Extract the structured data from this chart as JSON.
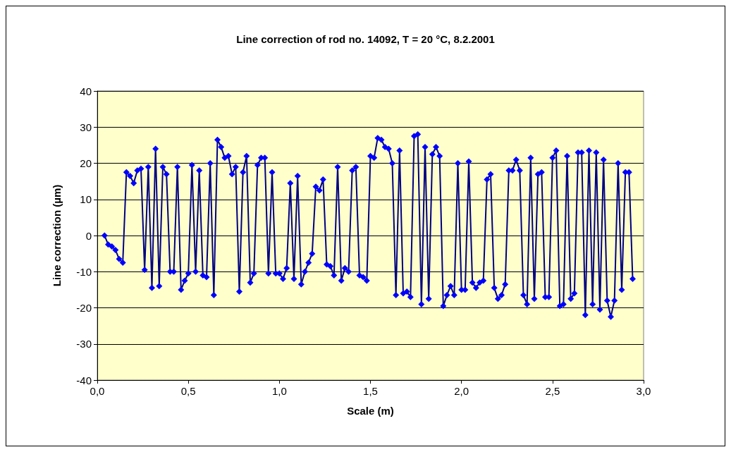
{
  "chart_data": {
    "type": "line",
    "title": "Line correction of rod no. 14092, T = 20 °C, 8.2.2001",
    "xlabel": "Scale (m)",
    "ylabel": "Line correction (µm)",
    "x": [
      0.04,
      0.06,
      0.08,
      0.1,
      0.12,
      0.14,
      0.16,
      0.18,
      0.2,
      0.22,
      0.24,
      0.26,
      0.28,
      0.3,
      0.32,
      0.34,
      0.36,
      0.38,
      0.4,
      0.42,
      0.44,
      0.46,
      0.48,
      0.5,
      0.52,
      0.54,
      0.56,
      0.58,
      0.6,
      0.62,
      0.64,
      0.66,
      0.68,
      0.7,
      0.72,
      0.74,
      0.76,
      0.78,
      0.8,
      0.82,
      0.84,
      0.86,
      0.88,
      0.9,
      0.92,
      0.94,
      0.96,
      0.98,
      1.0,
      1.02,
      1.04,
      1.06,
      1.08,
      1.1,
      1.12,
      1.14,
      1.16,
      1.18,
      1.2,
      1.22,
      1.24,
      1.26,
      1.28,
      1.3,
      1.32,
      1.34,
      1.36,
      1.38,
      1.4,
      1.42,
      1.44,
      1.46,
      1.48,
      1.5,
      1.52,
      1.54,
      1.56,
      1.58,
      1.6,
      1.62,
      1.64,
      1.66,
      1.68,
      1.7,
      1.72,
      1.74,
      1.76,
      1.78,
      1.8,
      1.82,
      1.84,
      1.86,
      1.88,
      1.9,
      1.92,
      1.94,
      1.96,
      1.98,
      2.0,
      2.02,
      2.04,
      2.06,
      2.08,
      2.1,
      2.12,
      2.14,
      2.16,
      2.18,
      2.2,
      2.22,
      2.24,
      2.26,
      2.28,
      2.3,
      2.32,
      2.34,
      2.36,
      2.38,
      2.4,
      2.42,
      2.44,
      2.46,
      2.48,
      2.5,
      2.52,
      2.54,
      2.56,
      2.58,
      2.6,
      2.62,
      2.64,
      2.66,
      2.68,
      2.7,
      2.72,
      2.74,
      2.76,
      2.78,
      2.8,
      2.82,
      2.84,
      2.86,
      2.88,
      2.9,
      2.92,
      2.94
    ],
    "series": [
      {
        "color": "#0000ff",
        "values": [
          0,
          -2.5,
          -3,
          -4,
          -6.5,
          -7.5,
          17.5,
          16.5,
          14.5,
          18,
          18.5,
          -9.5,
          19,
          -14.5,
          24,
          -14,
          19,
          17,
          -10,
          -10,
          19,
          -15,
          -12.5,
          -10.5,
          19.5,
          -10,
          18,
          -11,
          -11.5,
          20,
          -16.5,
          26.5,
          24.5,
          21.5,
          22,
          17,
          19,
          -15.5,
          17.5,
          22,
          -13,
          -10.5,
          19.5,
          21.5,
          21.5,
          -10.5,
          17.5,
          -10.5,
          -10.5,
          -12,
          -9,
          14.5,
          -12,
          16.5,
          -13.5,
          -10,
          -7.5,
          -5,
          13.5,
          12.5,
          15.5,
          -8,
          -8.5,
          -11,
          19,
          -12.5,
          -9,
          -10,
          18,
          19,
          -11,
          -11.5,
          -12.5,
          22,
          21.5,
          27,
          26.5,
          24.5,
          24,
          20,
          -16.5,
          23.5,
          -16,
          -15.5,
          -17,
          27.5,
          28,
          -19,
          24.5,
          -17.5,
          22.5,
          24.5,
          22,
          -19.5,
          -16.5,
          -14,
          -16.5,
          20,
          -15,
          -15,
          20.5,
          -13,
          -14.5,
          -13,
          -12.5,
          15.5,
          17,
          -14.5,
          -17.5,
          -16.5,
          -13.5,
          18,
          18,
          21,
          18,
          -16.5,
          -19,
          21.5,
          -17.5,
          17,
          17.5,
          -17,
          -17,
          21.5,
          23.5,
          -19.5,
          -19,
          22,
          -17.5,
          -16,
          23,
          23,
          -22,
          23.5,
          -19,
          23,
          -20.5,
          21,
          -18,
          -22.5,
          -18,
          20,
          -15,
          17.5,
          17.5,
          -12
        ]
      }
    ],
    "xlim": [
      0,
      3
    ],
    "xticks": [
      {
        "value": 0,
        "label": "0,0"
      },
      {
        "value": 0.5,
        "label": "0,5"
      },
      {
        "value": 1,
        "label": "1,0"
      },
      {
        "value": 1.5,
        "label": "1,5"
      },
      {
        "value": 2,
        "label": "2,0"
      },
      {
        "value": 2.5,
        "label": "2,5"
      },
      {
        "value": 3,
        "label": "3,0"
      }
    ],
    "ylim": [
      -40,
      40
    ],
    "yticks": [
      -40,
      -30,
      -20,
      -10,
      0,
      10,
      20,
      30,
      40
    ],
    "grid": "y",
    "marker": "diamond",
    "line_style": "solid"
  }
}
